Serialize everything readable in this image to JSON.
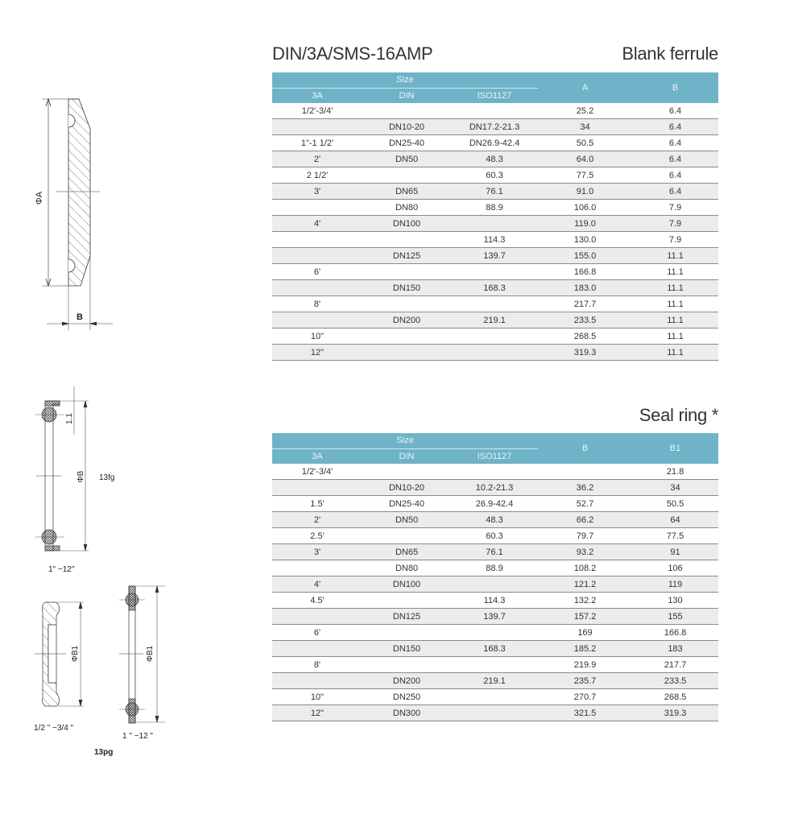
{
  "header": {
    "series_title": "DIN/3A/SMS-16AMP",
    "blank_ferrule_title": "Blank ferrule",
    "seal_ring_title": "Seal ring *"
  },
  "colors": {
    "table_header": "#6fb3c8",
    "row_stripe": "#ececec"
  },
  "blank_ferrule_table": {
    "group_header": "Size",
    "columns": [
      "3A",
      "DIN",
      "ISO1127",
      "A",
      "B"
    ],
    "rows": [
      [
        "1/2'-3/4'",
        "",
        "",
        "25.2",
        "6.4"
      ],
      [
        "",
        "DN10-20",
        "DN17.2-21.3",
        "34",
        "6.4"
      ],
      [
        "1\"-1 1/2'",
        "DN25-40",
        "DN26.9-42.4",
        "50.5",
        "6.4"
      ],
      [
        "2'",
        "DN50",
        "48.3",
        "64.0",
        "6.4"
      ],
      [
        "2 1/2'",
        "",
        "60.3",
        "77.5",
        "6.4"
      ],
      [
        "3'",
        "DN65",
        "76.1",
        "91.0",
        "6.4"
      ],
      [
        "",
        "DN80",
        "88.9",
        "106.0",
        "7.9"
      ],
      [
        "4'",
        "DN100",
        "",
        "119.0",
        "7.9"
      ],
      [
        "",
        "",
        "114.3",
        "130.0",
        "7.9"
      ],
      [
        "",
        "DN125",
        "139.7",
        "155.0",
        "11.1"
      ],
      [
        "6'",
        "",
        "",
        "166.8",
        "11.1"
      ],
      [
        "",
        "DN150",
        "168.3",
        "183.0",
        "11.1"
      ],
      [
        "8'",
        "",
        "",
        "217.7",
        "11.1"
      ],
      [
        "",
        "DN200",
        "219.1",
        "233.5",
        "11.1"
      ],
      [
        "10\"",
        "",
        "",
        "268.5",
        "11.1"
      ],
      [
        "12\"",
        "",
        "",
        "319.3",
        "11.1"
      ]
    ]
  },
  "seal_ring_table": {
    "group_header": "Size",
    "columns": [
      "3A",
      "DIN",
      "ISO1127",
      "B",
      "B1"
    ],
    "rows": [
      [
        "1/2'-3/4'",
        "",
        "",
        "",
        "21.8"
      ],
      [
        "",
        "DN10-20",
        "10.2-21.3",
        "36.2",
        "34"
      ],
      [
        "1.5'",
        "DN25-40",
        "26.9-42.4",
        "52.7",
        "50.5"
      ],
      [
        "2'",
        "DN50",
        "48.3",
        "66.2",
        "64"
      ],
      [
        "2.5'",
        "",
        "60.3",
        "79.7",
        "77.5"
      ],
      [
        "3'",
        "DN65",
        "76.1",
        "93.2",
        "91"
      ],
      [
        "",
        "DN80",
        "88.9",
        "108.2",
        "106"
      ],
      [
        "4'",
        "DN100",
        "",
        "121.2",
        "119"
      ],
      [
        "4.5'",
        "",
        "114.3",
        "132.2",
        "130"
      ],
      [
        "",
        "DN125",
        "139.7",
        "157.2",
        "155"
      ],
      [
        "6'",
        "",
        "",
        "169",
        "166.8"
      ],
      [
        "",
        "DN150",
        "168.3",
        "185.2",
        "183"
      ],
      [
        "8'",
        "",
        "",
        "219.9",
        "217.7"
      ],
      [
        "",
        "DN200",
        "219.1",
        "235.7",
        "233.5"
      ],
      [
        "10\"",
        "DN250",
        "",
        "270.7",
        "268.5"
      ],
      [
        "12\"",
        "DN300",
        "",
        "321.5",
        "319.3"
      ]
    ]
  },
  "drawings": {
    "ferrule": {
      "dim_a": "ΦA",
      "dim_b": "B"
    },
    "seal_13fg": {
      "dim_offset": "1.1",
      "dim_b": "ΦB",
      "code": "13fg",
      "size_range": "1″ −12″"
    },
    "seal_13pg": {
      "dim_b1_small": "ΦB1",
      "size_small": "1/2 \" −3/4 \"",
      "dim_b1_large": "ΦB1",
      "size_large": "1 \" −12 \"",
      "code": "13pg"
    }
  }
}
